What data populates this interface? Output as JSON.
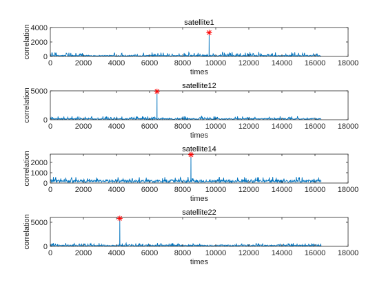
{
  "colors": {
    "line": "#0072BD",
    "peak_marker": "#FF0000",
    "axes": "#262626"
  },
  "chart_data": [
    {
      "type": "line",
      "title": "satellite1",
      "xlabel": "times",
      "ylabel": "correlation",
      "xlim": [
        0,
        18000
      ],
      "ylim": [
        0,
        4000
      ],
      "xticks": [
        0,
        2000,
        4000,
        6000,
        8000,
        10000,
        12000,
        14000,
        16000,
        18000
      ],
      "yticks": [
        0,
        2000,
        4000
      ],
      "x_range": [
        1,
        16368
      ],
      "noise_level": [
        150,
        600
      ],
      "peak": {
        "x": 9600,
        "y": 3300
      },
      "peak_marker": "asterisk",
      "grid": false
    },
    {
      "type": "line",
      "title": "satellite12",
      "xlabel": "times",
      "ylabel": "correlation",
      "xlim": [
        0,
        18000
      ],
      "ylim": [
        0,
        5000
      ],
      "xticks": [
        0,
        2000,
        4000,
        6000,
        8000,
        10000,
        12000,
        14000,
        16000,
        18000
      ],
      "yticks": [
        0,
        5000
      ],
      "x_range": [
        1,
        16368
      ],
      "noise_level": [
        200,
        600
      ],
      "peak": {
        "x": 6450,
        "y": 4900
      },
      "peak_marker": "asterisk",
      "grid": false
    },
    {
      "type": "line",
      "title": "satellite14",
      "xlabel": "times",
      "ylabel": "correlation",
      "xlim": [
        0,
        18000
      ],
      "ylim": [
        0,
        2800
      ],
      "xticks": [
        0,
        2000,
        4000,
        6000,
        8000,
        10000,
        12000,
        14000,
        16000,
        18000
      ],
      "yticks": [
        0,
        1000,
        2000
      ],
      "x_range": [
        1,
        16368
      ],
      "noise_level": [
        250,
        600
      ],
      "peak": {
        "x": 8500,
        "y": 2750
      },
      "peak_marker": "asterisk",
      "grid": false
    },
    {
      "type": "line",
      "title": "satellite22",
      "xlabel": "times",
      "ylabel": "correlation",
      "xlim": [
        0,
        18000
      ],
      "ylim": [
        0,
        6000
      ],
      "xticks": [
        0,
        2000,
        4000,
        6000,
        8000,
        10000,
        12000,
        14000,
        16000,
        18000
      ],
      "yticks": [
        0,
        5000
      ],
      "x_range": [
        1,
        16368
      ],
      "noise_level": [
        250,
        700
      ],
      "peak": {
        "x": 4200,
        "y": 5800
      },
      "peak_marker": "asterisk",
      "grid": false
    }
  ]
}
